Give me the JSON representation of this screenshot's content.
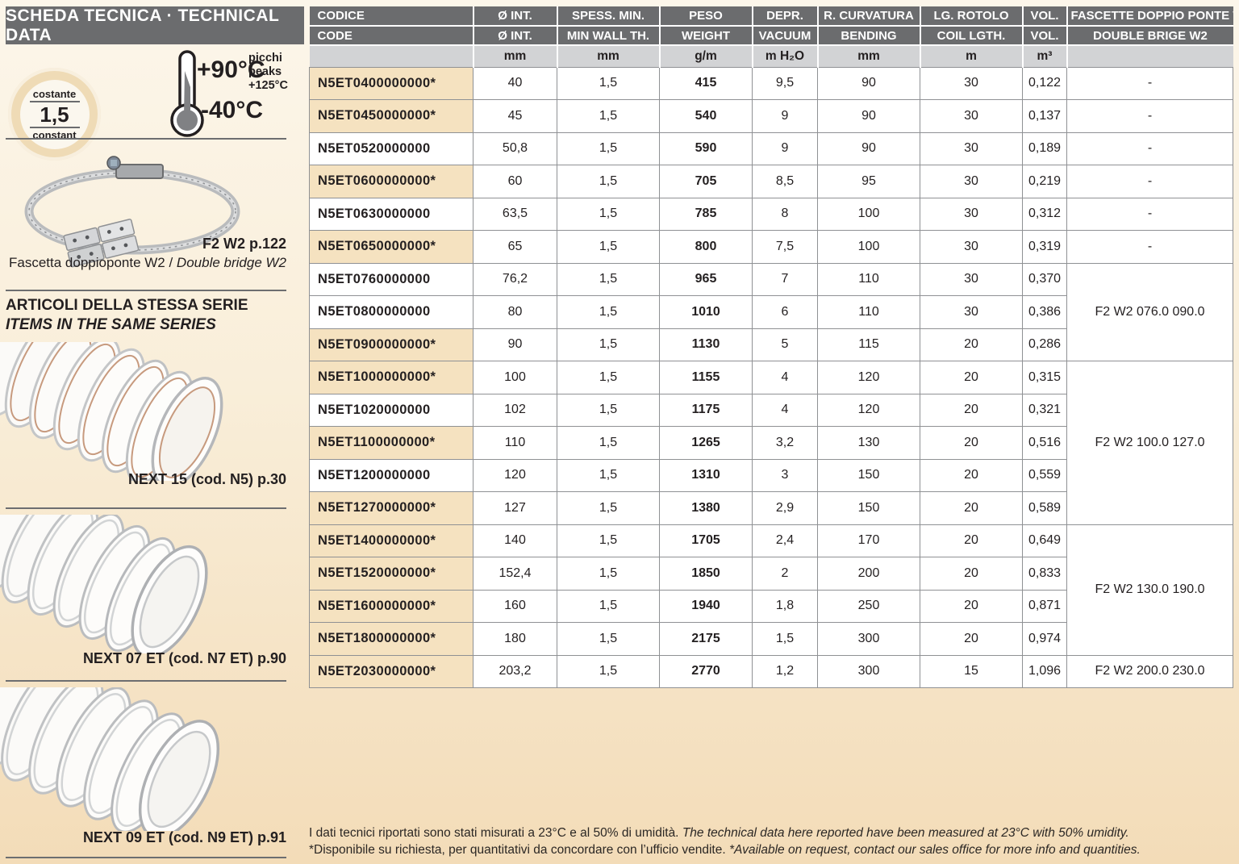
{
  "sidebar": {
    "header": "SCHEDA TECNICA · TECHNICAL DATA",
    "badge": {
      "top": "costante",
      "value": "1,5",
      "bottom": "constant"
    },
    "temperature": {
      "max": "+90°C",
      "min": "-40°C",
      "peaks_it": "picchi",
      "peaks_en": "peaks",
      "peaks_value": "+125°C"
    },
    "clamp": {
      "ref": "F2 W2 p.122",
      "caption_it": "Fascetta doppioponte W2 / ",
      "caption_en": "Double bridge W2"
    },
    "series": {
      "title_it": "ARTICOLI DELLA STESSA SERIE",
      "title_en": "ITEMS IN THE SAME SERIES",
      "items": [
        {
          "caption": "NEXT 15 (cod. N5) p.30"
        },
        {
          "caption": "NEXT 07 ET (cod. N7 ET) p.90"
        },
        {
          "caption": "NEXT 09 ET (cod. N9 ET) p.91"
        }
      ]
    }
  },
  "table": {
    "columns": [
      {
        "it": "CODICE",
        "en": "CODE"
      },
      {
        "it": "Ø INT.",
        "en": "Ø INT."
      },
      {
        "it": "SPESS. MIN.",
        "en": "MIN WALL TH."
      },
      {
        "it": "PESO",
        "en": "WEIGHT"
      },
      {
        "it": "DEPR.",
        "en": "VACUUM"
      },
      {
        "it": "R. CURVATURA",
        "en": "BENDING"
      },
      {
        "it": "LG. ROTOLO",
        "en": "COIL LGTH."
      },
      {
        "it": "VOL.",
        "en": "VOL."
      },
      {
        "it": "FASCETTE DOPPIO PONTE W2",
        "en": "DOUBLE BRIGE W2"
      }
    ],
    "units": [
      "",
      "mm",
      "mm",
      "g/m",
      "m H₂O",
      "mm",
      "m",
      "m³",
      ""
    ],
    "rows": [
      {
        "code": "N5ET0400000000*",
        "diameter": "40",
        "wall": "1,5",
        "weight": "415",
        "vacuum": "9,5",
        "bending": "90",
        "coil": "30",
        "volume": "0,122",
        "highlight": true,
        "fascette": {
          "text": "-",
          "rowspan": 1
        }
      },
      {
        "code": "N5ET0450000000*",
        "diameter": "45",
        "wall": "1,5",
        "weight": "540",
        "vacuum": "9",
        "bending": "90",
        "coil": "30",
        "volume": "0,137",
        "highlight": true,
        "fascette": {
          "text": "-",
          "rowspan": 1
        }
      },
      {
        "code": "N5ET0520000000",
        "diameter": "50,8",
        "wall": "1,5",
        "weight": "590",
        "vacuum": "9",
        "bending": "90",
        "coil": "30",
        "volume": "0,189",
        "highlight": false,
        "fascette": {
          "text": "-",
          "rowspan": 1
        }
      },
      {
        "code": "N5ET0600000000*",
        "diameter": "60",
        "wall": "1,5",
        "weight": "705",
        "vacuum": "8,5",
        "bending": "95",
        "coil": "30",
        "volume": "0,219",
        "highlight": true,
        "fascette": {
          "text": "-",
          "rowspan": 1
        }
      },
      {
        "code": "N5ET0630000000",
        "diameter": "63,5",
        "wall": "1,5",
        "weight": "785",
        "vacuum": "8",
        "bending": "100",
        "coil": "30",
        "volume": "0,312",
        "highlight": false,
        "fascette": {
          "text": "-",
          "rowspan": 1
        }
      },
      {
        "code": "N5ET0650000000*",
        "diameter": "65",
        "wall": "1,5",
        "weight": "800",
        "vacuum": "7,5",
        "bending": "100",
        "coil": "30",
        "volume": "0,319",
        "highlight": true,
        "fascette": {
          "text": "-",
          "rowspan": 1
        }
      },
      {
        "code": "N5ET0760000000",
        "diameter": "76,2",
        "wall": "1,5",
        "weight": "965",
        "vacuum": "7",
        "bending": "110",
        "coil": "30",
        "volume": "0,370",
        "highlight": false,
        "fascette": {
          "text": "F2 W2 076.0 090.0",
          "rowspan": 3
        }
      },
      {
        "code": "N5ET0800000000",
        "diameter": "80",
        "wall": "1,5",
        "weight": "1010",
        "vacuum": "6",
        "bending": "110",
        "coil": "30",
        "volume": "0,386",
        "highlight": false,
        "fascette": null
      },
      {
        "code": "N5ET0900000000*",
        "diameter": "90",
        "wall": "1,5",
        "weight": "1130",
        "vacuum": "5",
        "bending": "115",
        "coil": "20",
        "volume": "0,286",
        "highlight": true,
        "fascette": null
      },
      {
        "code": "N5ET1000000000*",
        "diameter": "100",
        "wall": "1,5",
        "weight": "1155",
        "vacuum": "4",
        "bending": "120",
        "coil": "20",
        "volume": "0,315",
        "highlight": true,
        "fascette": {
          "text": "F2 W2 100.0 127.0",
          "rowspan": 5
        }
      },
      {
        "code": "N5ET1020000000",
        "diameter": "102",
        "wall": "1,5",
        "weight": "1175",
        "vacuum": "4",
        "bending": "120",
        "coil": "20",
        "volume": "0,321",
        "highlight": false,
        "fascette": null
      },
      {
        "code": "N5ET1100000000*",
        "diameter": "110",
        "wall": "1,5",
        "weight": "1265",
        "vacuum": "3,2",
        "bending": "130",
        "coil": "20",
        "volume": "0,516",
        "highlight": true,
        "fascette": null
      },
      {
        "code": "N5ET1200000000",
        "diameter": "120",
        "wall": "1,5",
        "weight": "1310",
        "vacuum": "3",
        "bending": "150",
        "coil": "20",
        "volume": "0,559",
        "highlight": false,
        "fascette": null
      },
      {
        "code": "N5ET1270000000*",
        "diameter": "127",
        "wall": "1,5",
        "weight": "1380",
        "vacuum": "2,9",
        "bending": "150",
        "coil": "20",
        "volume": "0,589",
        "highlight": true,
        "fascette": null
      },
      {
        "code": "N5ET1400000000*",
        "diameter": "140",
        "wall": "1,5",
        "weight": "1705",
        "vacuum": "2,4",
        "bending": "170",
        "coil": "20",
        "volume": "0,649",
        "highlight": true,
        "fascette": {
          "text": "F2 W2 130.0 190.0",
          "rowspan": 4
        }
      },
      {
        "code": "N5ET1520000000*",
        "diameter": "152,4",
        "wall": "1,5",
        "weight": "1850",
        "vacuum": "2",
        "bending": "200",
        "coil": "20",
        "volume": "0,833",
        "highlight": true,
        "fascette": null
      },
      {
        "code": "N5ET1600000000*",
        "diameter": "160",
        "wall": "1,5",
        "weight": "1940",
        "vacuum": "1,8",
        "bending": "250",
        "coil": "20",
        "volume": "0,871",
        "highlight": true,
        "fascette": null
      },
      {
        "code": "N5ET1800000000*",
        "diameter": "180",
        "wall": "1,5",
        "weight": "2175",
        "vacuum": "1,5",
        "bending": "300",
        "coil": "20",
        "volume": "0,974",
        "highlight": true,
        "fascette": null
      },
      {
        "code": "N5ET2030000000*",
        "diameter": "203,2",
        "wall": "1,5",
        "weight": "2770",
        "vacuum": "1,2",
        "bending": "300",
        "coil": "15",
        "volume": "1,096",
        "highlight": true,
        "fascette": {
          "text": "F2 W2 200.0 230.0",
          "rowspan": 1
        }
      }
    ]
  },
  "footnote": {
    "line1_it": "I dati tecnici riportati sono stati misurati a 23°C e al 50% di umidità. ",
    "line1_en": "The technical data here reported have been measured at 23°C with 50% umidity.",
    "line2_it": "*Disponibile su richiesta, per quantitativi da concordare con l’ufficio vendite. ",
    "line2_en": "*Available on request, contact our sales office for more info and quantities."
  },
  "colors": {
    "header_gray": "#6b6c6e",
    "units_gray": "#d2d3d5",
    "row_highlight_beige": "#f5e2c0",
    "grid_border": "#8f9194",
    "copper_accent": "#c79a7e",
    "background_top": "#fcf6ea",
    "background_bottom": "#f3dcb8"
  }
}
